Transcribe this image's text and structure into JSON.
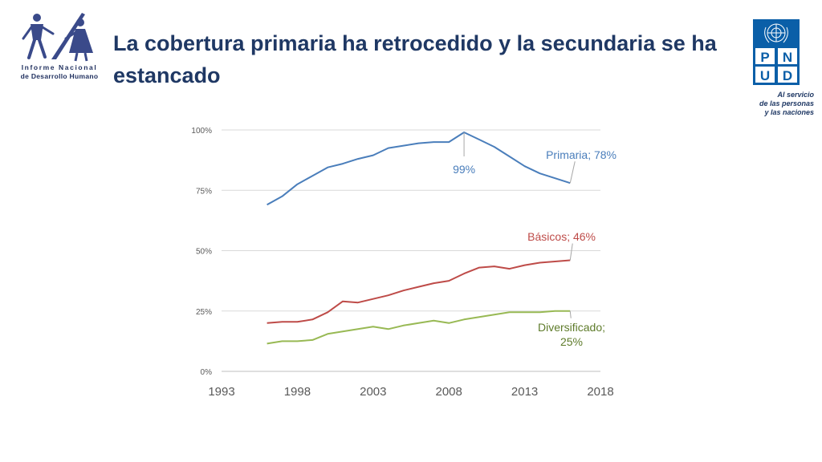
{
  "header": {
    "title": "La cobertura primaria ha retrocedido y la secundaria se ha estancado",
    "logo_left_line1": "Informe Nacional",
    "logo_left_line2": "de Desarrollo Humano",
    "undp_letters": [
      "P",
      "N",
      "U",
      "D"
    ],
    "undp_tagline": [
      "Al servicio",
      "de las personas",
      "y las naciones"
    ]
  },
  "colors": {
    "primaria": "#4a7ebb",
    "basicos": "#be4b48",
    "diversificado": "#98b954",
    "title": "#1f3864",
    "undp": "#0a5fa8"
  },
  "chart_data": {
    "type": "line",
    "title": "",
    "xlabel": "",
    "ylabel": "",
    "xlim": [
      1993,
      2018
    ],
    "ylim": [
      0,
      100
    ],
    "x_ticks": [
      "1993",
      "1998",
      "2003",
      "2008",
      "2013",
      "2018"
    ],
    "y_ticks": [
      "0%",
      "25%",
      "50%",
      "75%",
      "100%"
    ],
    "x": [
      1996,
      1997,
      1998,
      1999,
      2000,
      2001,
      2002,
      2003,
      2004,
      2005,
      2006,
      2007,
      2008,
      2009,
      2010,
      2011,
      2012,
      2013,
      2014,
      2015,
      2016
    ],
    "series": [
      {
        "name": "Primaria",
        "values": [
          69,
          72.5,
          77.5,
          81,
          84.5,
          86,
          88,
          89.5,
          92.5,
          93.5,
          94.5,
          95,
          95,
          99,
          96,
          93,
          89,
          85,
          82,
          80,
          78
        ]
      },
      {
        "name": "Básicos",
        "values": [
          20,
          20.5,
          20.5,
          21.5,
          24.5,
          29,
          28.5,
          30,
          31.5,
          33.5,
          35,
          36.5,
          37.5,
          40.5,
          43,
          43.5,
          42.5,
          44,
          45,
          45.5,
          46
        ]
      },
      {
        "name": "Diversificado",
        "values": [
          11.5,
          12.5,
          12.5,
          13,
          15.5,
          16.5,
          17.5,
          18.5,
          17.5,
          19,
          20,
          21,
          20,
          21.5,
          22.5,
          23.5,
          24.5,
          24.5,
          24.5,
          25,
          25
        ]
      }
    ],
    "annotations": [
      {
        "text": "Primaria; 78%",
        "series": "Primaria"
      },
      {
        "text": "99%",
        "series": "Primaria"
      },
      {
        "text": "Básicos; 46%",
        "series": "Básicos"
      },
      {
        "text": "Diversificado;",
        "series": "Diversificado"
      },
      {
        "text": "25%",
        "series": "Diversificado"
      }
    ],
    "grid": true,
    "legend": "none"
  }
}
